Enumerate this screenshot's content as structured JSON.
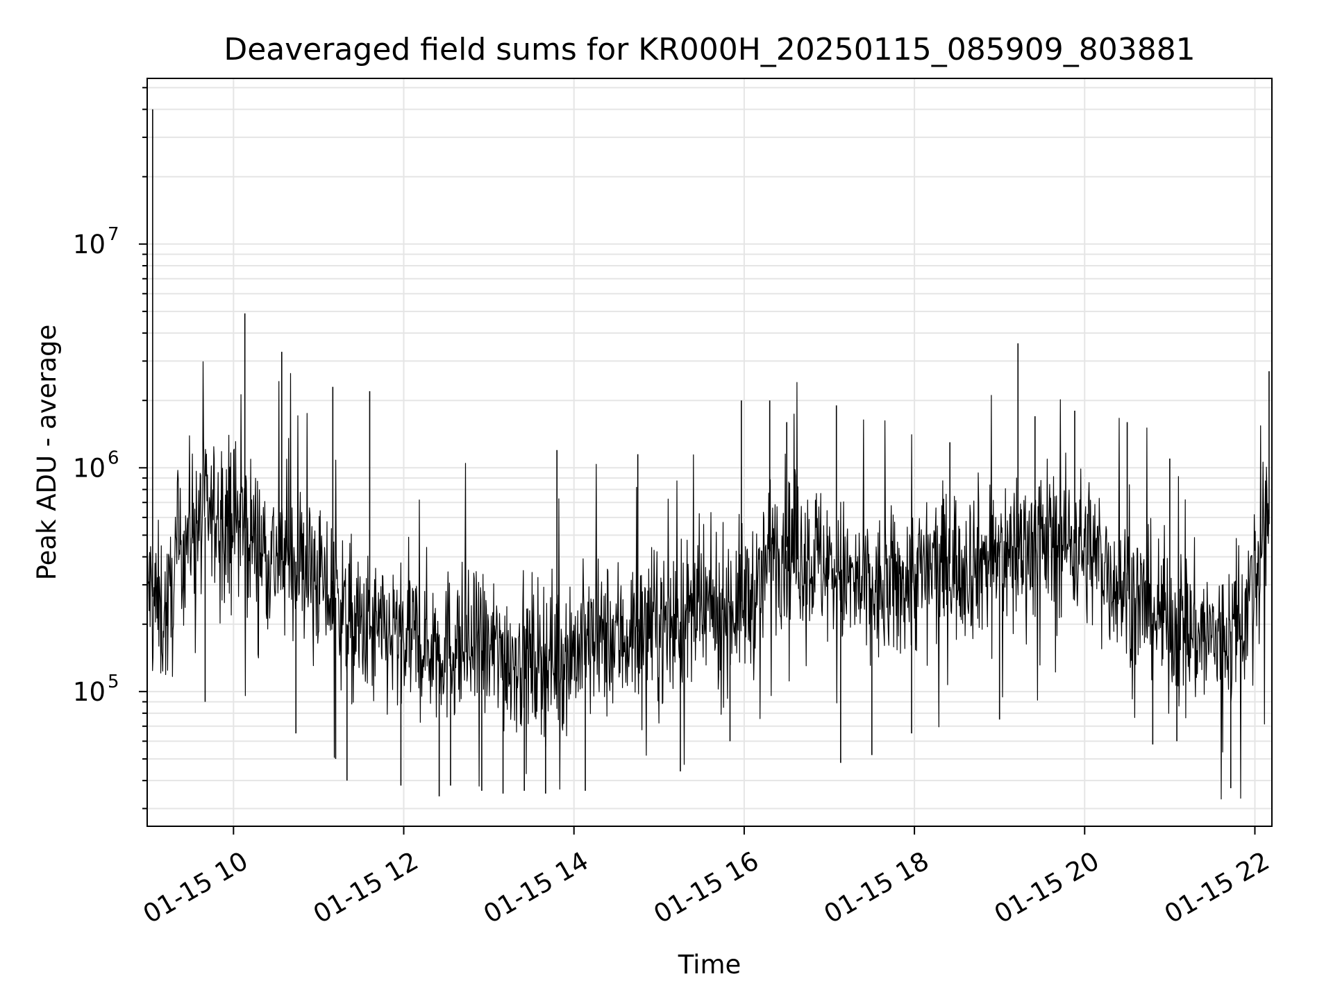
{
  "chart_data": {
    "type": "line",
    "title": "Deaveraged field sums for KR000H_20250115_085909_803881",
    "xlabel": "Time",
    "ylabel": "Peak ADU - average",
    "x_range": [
      "2025-01-15T08:59:09",
      "2025-01-15T22:12:00"
    ],
    "ylim": [
      25000,
      55000000
    ],
    "y_scale": "log",
    "grid": true,
    "colors": {
      "line": "#000000",
      "grid": "#e5e5e5",
      "axes": "#000000",
      "background": "#ffffff"
    },
    "x_ticks": [
      {
        "value": "2025-01-15T10:00:00",
        "label": "01-15 10"
      },
      {
        "value": "2025-01-15T12:00:00",
        "label": "01-15 12"
      },
      {
        "value": "2025-01-15T14:00:00",
        "label": "01-15 14"
      },
      {
        "value": "2025-01-15T16:00:00",
        "label": "01-15 16"
      },
      {
        "value": "2025-01-15T18:00:00",
        "label": "01-15 18"
      },
      {
        "value": "2025-01-15T20:00:00",
        "label": "01-15 20"
      },
      {
        "value": "2025-01-15T22:00:00",
        "label": "01-15 22"
      }
    ],
    "y_ticks": [
      {
        "value": 100000,
        "base": "10",
        "exp": "5"
      },
      {
        "value": 1000000,
        "base": "10",
        "exp": "6"
      },
      {
        "value": 10000000,
        "base": "10",
        "exp": "7"
      }
    ],
    "series": [
      {
        "x": [
          "2025-01-15T08:59:09",
          "2025-01-15T09:00:00",
          "2025-01-15T09:05:00",
          "2025-01-15T09:10:00",
          "2025-01-15T09:15:00",
          "2025-01-15T09:20:00",
          "2025-01-15T09:30:00",
          "2025-01-15T09:40:00",
          "2025-01-15T09:50:00",
          "2025-01-15T10:00:00",
          "2025-01-15T10:10:00",
          "2025-01-15T10:20:00",
          "2025-01-15T10:30:00",
          "2025-01-15T10:45:00",
          "2025-01-15T11:00:00",
          "2025-01-15T11:15:00",
          "2025-01-15T11:20:00",
          "2025-01-15T11:35:00",
          "2025-01-15T11:50:00",
          "2025-01-15T12:00:00",
          "2025-01-15T12:15:00",
          "2025-01-15T12:30:00",
          "2025-01-15T12:45:00",
          "2025-01-15T13:00:00",
          "2025-01-15T13:15:00",
          "2025-01-15T13:30:00",
          "2025-01-15T13:45:00",
          "2025-01-15T14:00:00",
          "2025-01-15T14:15:00",
          "2025-01-15T14:30:00",
          "2025-01-15T14:45:00",
          "2025-01-15T15:00:00",
          "2025-01-15T15:15:00",
          "2025-01-15T15:30:00",
          "2025-01-15T15:45:00",
          "2025-01-15T16:00:00",
          "2025-01-15T16:10:00",
          "2025-01-15T16:20:00",
          "2025-01-15T16:35:00",
          "2025-01-15T16:50:00",
          "2025-01-15T17:05:00",
          "2025-01-15T17:20:00",
          "2025-01-15T17:35:00",
          "2025-01-15T17:50:00",
          "2025-01-15T18:05:00",
          "2025-01-15T18:20:00",
          "2025-01-15T18:35:00",
          "2025-01-15T18:50:00",
          "2025-01-15T19:05:00",
          "2025-01-15T19:20:00",
          "2025-01-15T19:35:00",
          "2025-01-15T19:50:00",
          "2025-01-15T20:05:00",
          "2025-01-15T20:20:00",
          "2025-01-15T20:35:00",
          "2025-01-15T20:50:00",
          "2025-01-15T21:05:00",
          "2025-01-15T21:20:00",
          "2025-01-15T21:35:00",
          "2025-01-15T21:50:00",
          "2025-01-15T22:00:00",
          "2025-01-15T22:10:00"
        ],
        "values": [
          300000,
          290000,
          250000,
          220000,
          230000,
          380000,
          560000,
          600000,
          620000,
          610000,
          520000,
          450000,
          390000,
          380000,
          320000,
          250000,
          200000,
          180000,
          175000,
          170000,
          165000,
          160000,
          158000,
          150000,
          145000,
          140000,
          145000,
          155000,
          165000,
          175000,
          185000,
          195000,
          205000,
          215000,
          235000,
          255000,
          280000,
          470000,
          430000,
          400000,
          340000,
          290000,
          270000,
          300000,
          340000,
          370000,
          380000,
          390000,
          420000,
          460000,
          480000,
          470000,
          420000,
          330000,
          260000,
          220000,
          200000,
          180000,
          170000,
          200000,
          320000,
          560000
        ]
      }
    ],
    "spikes": [
      {
        "x": "2025-01-15T09:03:00",
        "y": 40000000
      },
      {
        "x": "2025-01-15T09:40:00",
        "y": 90000
      },
      {
        "x": "2025-01-15T10:08:00",
        "y": 4900000
      },
      {
        "x": "2025-01-15T10:34:00",
        "y": 3300000
      },
      {
        "x": "2025-01-15T10:44:00",
        "y": 65000
      },
      {
        "x": "2025-01-15T11:10:00",
        "y": 2300000
      },
      {
        "x": "2025-01-15T11:12:00",
        "y": 50000
      },
      {
        "x": "2025-01-15T11:20:00",
        "y": 40000
      },
      {
        "x": "2025-01-15T11:36:00",
        "y": 2200000
      },
      {
        "x": "2025-01-15T11:58:00",
        "y": 38000
      },
      {
        "x": "2025-01-15T12:25:00",
        "y": 34000
      },
      {
        "x": "2025-01-15T12:33:00",
        "y": 38000
      },
      {
        "x": "2025-01-15T12:55:00",
        "y": 36000
      },
      {
        "x": "2025-01-15T13:10:00",
        "y": 35000
      },
      {
        "x": "2025-01-15T13:25:00",
        "y": 36000
      },
      {
        "x": "2025-01-15T13:40:00",
        "y": 35000
      },
      {
        "x": "2025-01-15T13:48:00",
        "y": 1200000
      },
      {
        "x": "2025-01-15T14:08:00",
        "y": 36000
      },
      {
        "x": "2025-01-15T14:45:00",
        "y": 1150000
      },
      {
        "x": "2025-01-15T15:15:00",
        "y": 44000
      },
      {
        "x": "2025-01-15T15:50:00",
        "y": 60000
      },
      {
        "x": "2025-01-15T15:58:00",
        "y": 2000000
      },
      {
        "x": "2025-01-15T16:18:00",
        "y": 2000000
      },
      {
        "x": "2025-01-15T16:30:00",
        "y": 1600000
      },
      {
        "x": "2025-01-15T17:05:00",
        "y": 1900000
      },
      {
        "x": "2025-01-15T17:08:00",
        "y": 48000
      },
      {
        "x": "2025-01-15T17:30:00",
        "y": 52000
      },
      {
        "x": "2025-01-15T17:58:00",
        "y": 65000
      },
      {
        "x": "2025-01-15T18:25:00",
        "y": 1300000
      },
      {
        "x": "2025-01-15T19:00:00",
        "y": 75000
      },
      {
        "x": "2025-01-15T19:13:00",
        "y": 3600000
      },
      {
        "x": "2025-01-15T19:25:00",
        "y": 1700000
      },
      {
        "x": "2025-01-15T19:53:00",
        "y": 1800000
      },
      {
        "x": "2025-01-15T20:30:00",
        "y": 1600000
      },
      {
        "x": "2025-01-15T20:48:00",
        "y": 58000
      },
      {
        "x": "2025-01-15T21:00:00",
        "y": 1100000
      },
      {
        "x": "2025-01-15T21:05:00",
        "y": 60000
      },
      {
        "x": "2025-01-15T21:43:00",
        "y": 37000
      },
      {
        "x": "2025-01-15T22:10:00",
        "y": 2700000
      }
    ]
  }
}
